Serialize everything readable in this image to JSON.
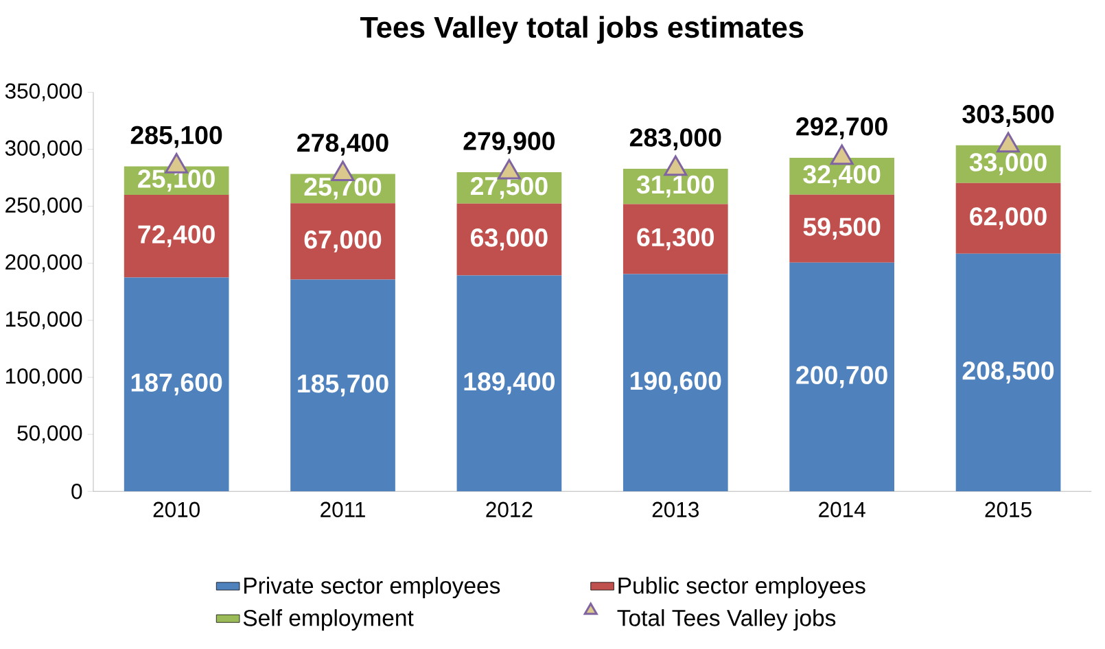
{
  "chart_data": {
    "type": "bar",
    "stacked": true,
    "title": "Tees Valley total jobs estimates",
    "categories": [
      "2010",
      "2011",
      "2012",
      "2013",
      "2014",
      "2015"
    ],
    "series": [
      {
        "name": "Private sector employees",
        "color": "#4f81bd",
        "values": [
          187600,
          185700,
          189400,
          190600,
          200700,
          208500
        ],
        "value_labels": [
          "187,600",
          "185,700",
          "189,400",
          "190,600",
          "200,700",
          "208,500"
        ]
      },
      {
        "name": "Public sector employees",
        "color": "#c0504d",
        "values": [
          72400,
          67000,
          63000,
          61300,
          59500,
          62000
        ],
        "value_labels": [
          "72,400",
          "67,000",
          "63,000",
          "61,300",
          "59,500",
          "62,000"
        ]
      },
      {
        "name": "Self employment",
        "color": "#9bbb59",
        "values": [
          25100,
          25700,
          27500,
          31100,
          32400,
          33000
        ],
        "value_labels": [
          "25,100",
          "25,700",
          "27,500",
          "31,100",
          "32,400",
          "33,000"
        ]
      },
      {
        "name": "Total Tees Valley jobs",
        "type": "scatter",
        "marker": "triangle",
        "color": "#8064a2",
        "values": [
          285100,
          278400,
          279900,
          283000,
          292700,
          303500
        ],
        "value_labels": [
          "285,100",
          "278,400",
          "279,900",
          "283,000",
          "292,700",
          "303,500"
        ]
      }
    ],
    "ylim": [
      0,
      350000
    ],
    "yticks": [
      {
        "value": 0,
        "label": "0"
      },
      {
        "value": 50000,
        "label": "50,000"
      },
      {
        "value": 100000,
        "label": "100,000"
      },
      {
        "value": 150000,
        "label": "150,000"
      },
      {
        "value": 200000,
        "label": "200,000"
      },
      {
        "value": 250000,
        "label": "250,000"
      },
      {
        "value": 300000,
        "label": "300,000"
      },
      {
        "value": 350000,
        "label": "350,000"
      }
    ],
    "grid": false,
    "legend": "bottom"
  }
}
